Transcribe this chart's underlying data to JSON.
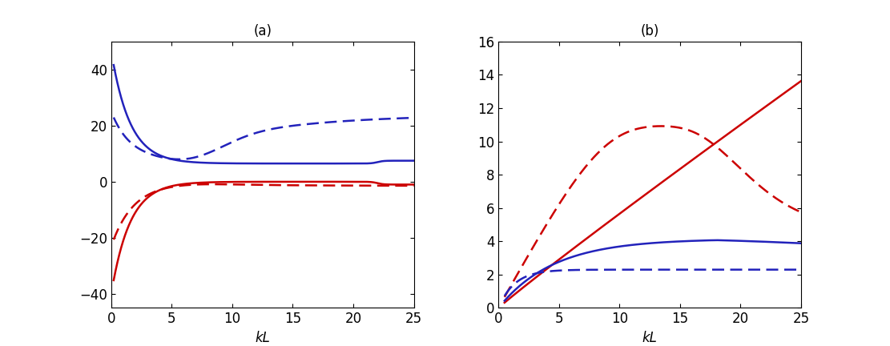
{
  "title_a": "(a)",
  "title_b": "(b)",
  "xlabel": "kL",
  "panel_a": {
    "xlim": [
      0,
      25
    ],
    "ylim": [
      -45,
      50
    ],
    "yticks": [
      -40,
      -20,
      0,
      20,
      40
    ],
    "xticks": [
      0,
      5,
      10,
      15,
      20,
      25
    ]
  },
  "panel_b": {
    "xlim": [
      0,
      25
    ],
    "ylim": [
      0,
      16
    ],
    "yticks": [
      0,
      2,
      4,
      6,
      8,
      10,
      12,
      14,
      16
    ],
    "xticks": [
      0,
      5,
      10,
      15,
      20,
      25
    ]
  },
  "blue_solid_color": "#2222bb",
  "red_solid_color": "#cc0000",
  "blue_dashed_color": "#2222bb",
  "red_dashed_color": "#cc0000",
  "linewidth_solid": 1.8,
  "linewidth_dashed": 1.8,
  "background_color": "#ffffff",
  "font_size": 12
}
